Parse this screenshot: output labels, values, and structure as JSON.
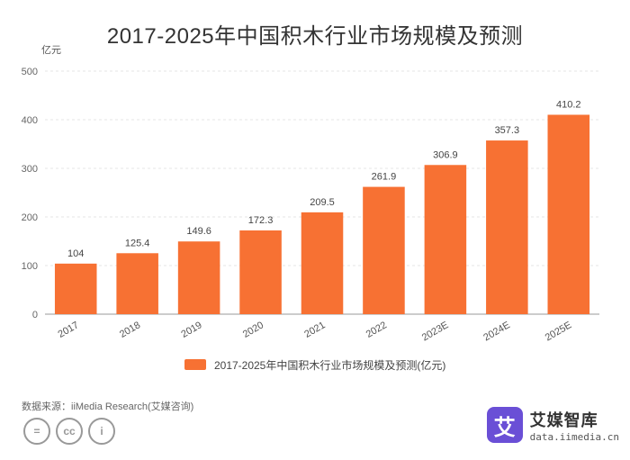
{
  "chart_data": {
    "type": "bar",
    "title": "2017-2025年中国积木行业市场规模及预测",
    "ylabel": "亿元",
    "ylim": [
      0,
      500
    ],
    "yticks": [
      0,
      100,
      200,
      300,
      400,
      500
    ],
    "categories": [
      "2017",
      "2018",
      "2019",
      "2020",
      "2021",
      "2022",
      "2023E",
      "2024E",
      "2025E"
    ],
    "series": [
      {
        "name": "2017-2025年中国积木行业市场规模及预测(亿元)",
        "values": [
          104,
          125.4,
          149.6,
          172.3,
          209.5,
          261.9,
          306.9,
          357.3,
          410.2
        ]
      }
    ],
    "value_labels": [
      "104",
      "125.4",
      "149.6",
      "172.3",
      "209.5",
      "261.9",
      "306.9",
      "357.3",
      "410.2"
    ],
    "bar_color": "#f77133",
    "grid": true,
    "legend_position": "bottom"
  },
  "source": "数据来源：iiMedia Research(艾媒咨询)",
  "brand": {
    "name": "艾媒智库",
    "url": "data.iimedia.cn",
    "logo_char": "艾",
    "logo_color": "#6a4fd6"
  },
  "license_icons": [
    "=",
    "cc",
    "i"
  ]
}
